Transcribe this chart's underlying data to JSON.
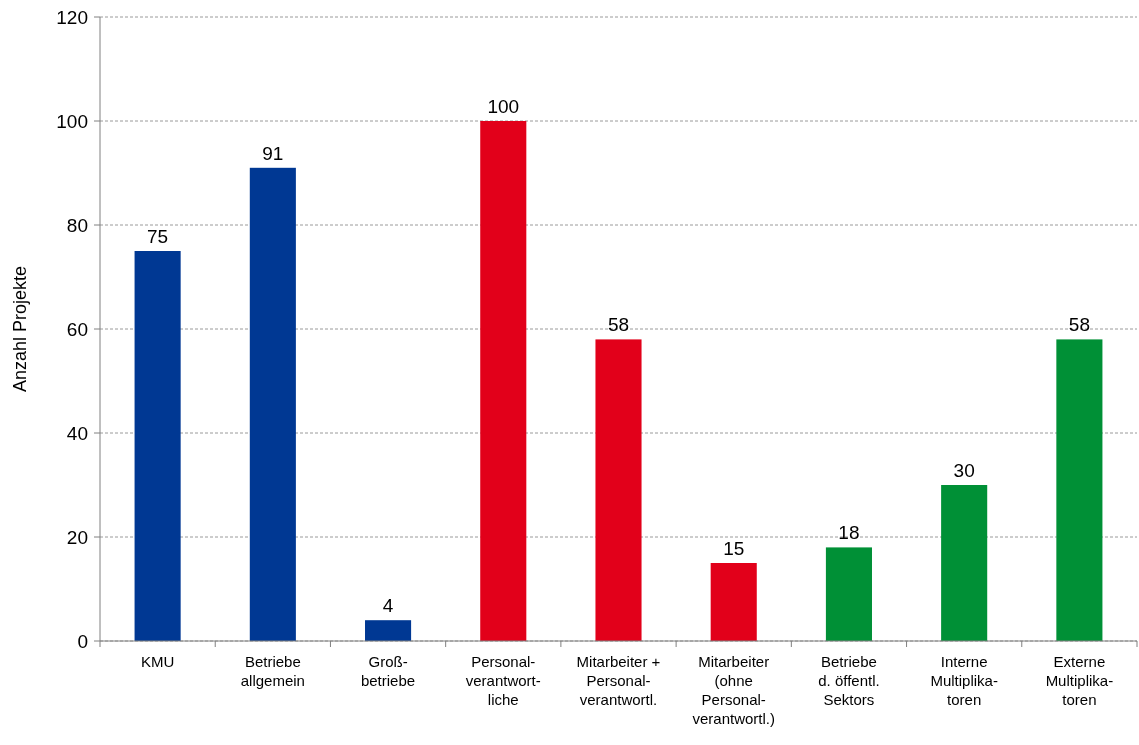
{
  "chart_data": {
    "type": "bar",
    "ylabel": "Anzahl Projekte",
    "categories": [
      "KMU",
      "Betriebe\nallgemein",
      "Groß-\nbetriebe",
      "Personal-\nverantwort-\nliche",
      "Mitarbeiter +\nPersonal-\nverantwortl.",
      "Mitarbeiter\n(ohne\nPersonal-\nverantwortl.)",
      "Betriebe\nd. öffentl.\nSektors",
      "Interne\nMultiplika-\ntoren",
      "Externe\nMultiplika-\ntoren"
    ],
    "values": [
      75,
      91,
      4,
      100,
      58,
      15,
      18,
      30,
      58
    ],
    "colors": [
      "#003893",
      "#003893",
      "#003893",
      "#e2001a",
      "#e2001a",
      "#e2001a",
      "#009036",
      "#009036",
      "#009036"
    ],
    "ylim": [
      0,
      120
    ],
    "yticks": [
      0,
      20,
      40,
      60,
      80,
      100,
      120
    ],
    "grid": "y",
    "data_labels": true
  }
}
